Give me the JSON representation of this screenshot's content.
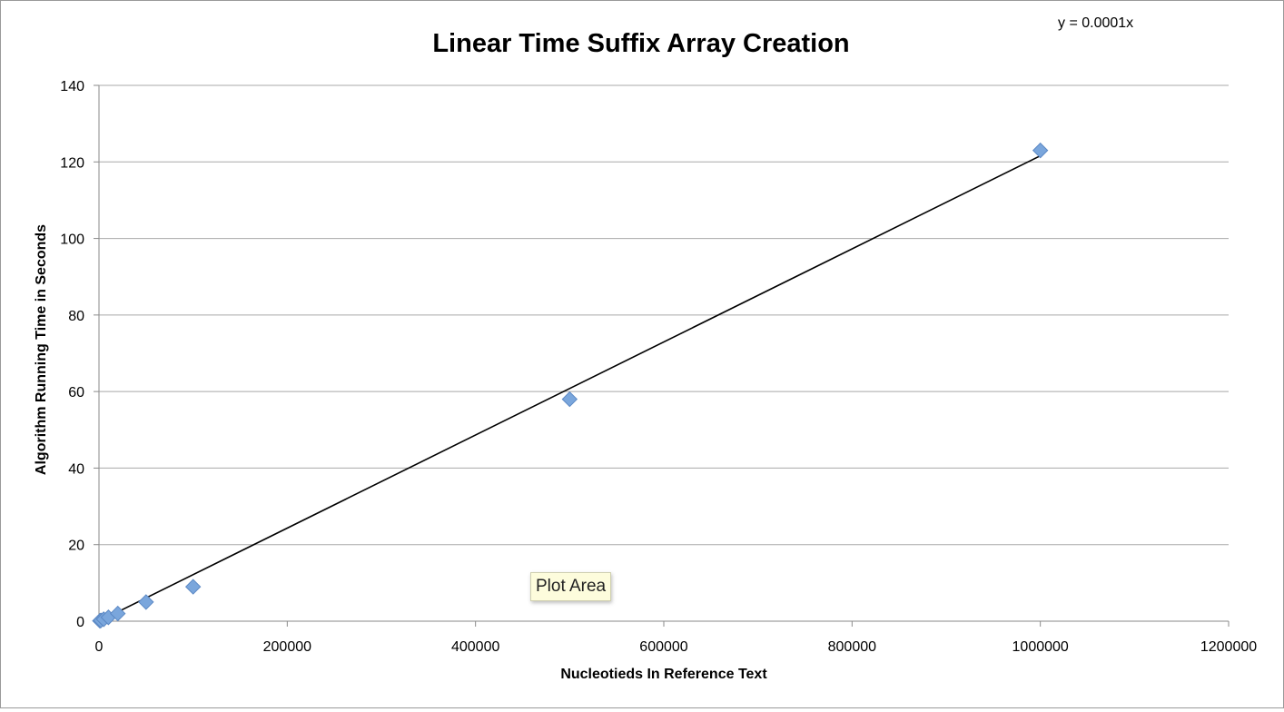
{
  "chart_data": {
    "type": "scatter",
    "title": "Linear Time Suffix Array Creation",
    "xlabel": "Nucleotieds In Reference Text",
    "ylabel": "Algorithm Running Time in Seconds",
    "xlim": [
      0,
      1200000
    ],
    "ylim": [
      0,
      140
    ],
    "x_ticks": [
      "0",
      "200000",
      "400000",
      "600000",
      "800000",
      "1000000",
      "1200000"
    ],
    "y_ticks": [
      "0",
      "20",
      "40",
      "60",
      "80",
      "100",
      "120",
      "140"
    ],
    "grid": "horizontal",
    "series": [
      {
        "color": "#7aa6dc",
        "marker": "diamond",
        "points": [
          {
            "x": 1000,
            "y": 0.1
          },
          {
            "x": 2000,
            "y": 0.2
          },
          {
            "x": 5000,
            "y": 0.5
          },
          {
            "x": 10000,
            "y": 1
          },
          {
            "x": 20000,
            "y": 2
          },
          {
            "x": 50000,
            "y": 5
          },
          {
            "x": 100000,
            "y": 9
          },
          {
            "x": 500000,
            "y": 58
          },
          {
            "x": 1000000,
            "y": 123
          }
        ]
      }
    ],
    "trendline": {
      "equation": "y = 0.0001x",
      "slope": 0.0001216,
      "color": "#000000",
      "x_start": 0,
      "x_end": 1000000
    }
  },
  "tooltip": "Plot Area"
}
